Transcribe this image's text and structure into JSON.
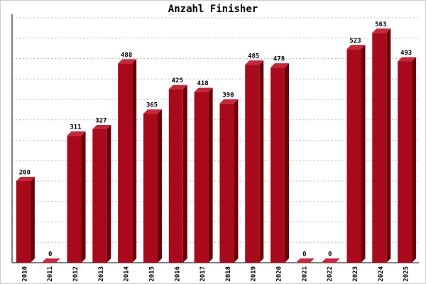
{
  "chart_data": {
    "type": "bar",
    "title": "Anzahl Finisher",
    "categories": [
      "2010",
      "2011",
      "2012",
      "2013",
      "2014",
      "2015",
      "2016",
      "2017",
      "2018",
      "2019",
      "2020",
      "2021",
      "2022",
      "2023",
      "2024",
      "2025"
    ],
    "values": [
      200,
      0,
      311,
      327,
      488,
      365,
      425,
      418,
      390,
      485,
      478,
      0,
      0,
      523,
      563,
      493
    ],
    "color": "#a80a1c",
    "ylim": [
      0,
      600
    ],
    "yticks": [
      0,
      50,
      100,
      150,
      200,
      250,
      300,
      350,
      400,
      450,
      500,
      550,
      600
    ],
    "grid": true
  }
}
